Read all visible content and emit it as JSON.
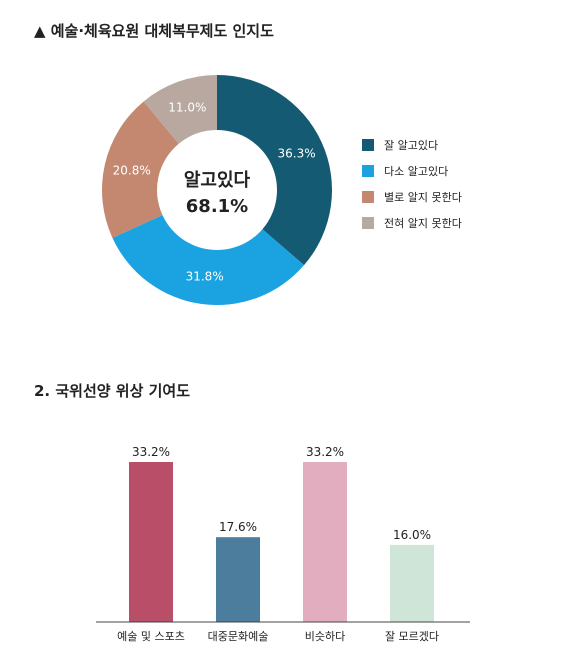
{
  "section1": {
    "title": "▲ 예술·체육요원 대체복무제도 인지도"
  },
  "section2": {
    "title": "2. 국위선양 위상 기여도"
  },
  "chart_data": [
    {
      "type": "pie",
      "title": "▲ 예술·체육요원 대체복무제도 인지도",
      "donut": true,
      "center_label": [
        "알고있다",
        "68.1%"
      ],
      "labels": [
        "잘 알고있다",
        "다소 알고있다",
        "별로 알지 못한다",
        "전혀 알지 못한다"
      ],
      "values": [
        36.3,
        31.8,
        20.8,
        11.0
      ],
      "value_labels": [
        "36.3%",
        "31.8%",
        "20.8%",
        "11.0%"
      ],
      "colors": [
        "#145a73",
        "#1aa3e0",
        "#c4876f",
        "#b8a8a0"
      ],
      "legend_position": "right"
    },
    {
      "type": "bar",
      "title": "2. 국위선양 위상 기여도",
      "categories": [
        "예술 및 스포츠",
        "대중문화예술",
        "비슷하다",
        "잘 모르겠다"
      ],
      "values": [
        33.2,
        17.6,
        33.2,
        16.0
      ],
      "value_labels": [
        "33.2%",
        "17.6%",
        "33.2%",
        "16.0%"
      ],
      "colors": [
        "#b94e68",
        "#4d7d9c",
        "#e3adc0",
        "#cfe5d7"
      ],
      "xlabel": "",
      "ylabel": "",
      "ylim": [
        0,
        36
      ]
    }
  ]
}
